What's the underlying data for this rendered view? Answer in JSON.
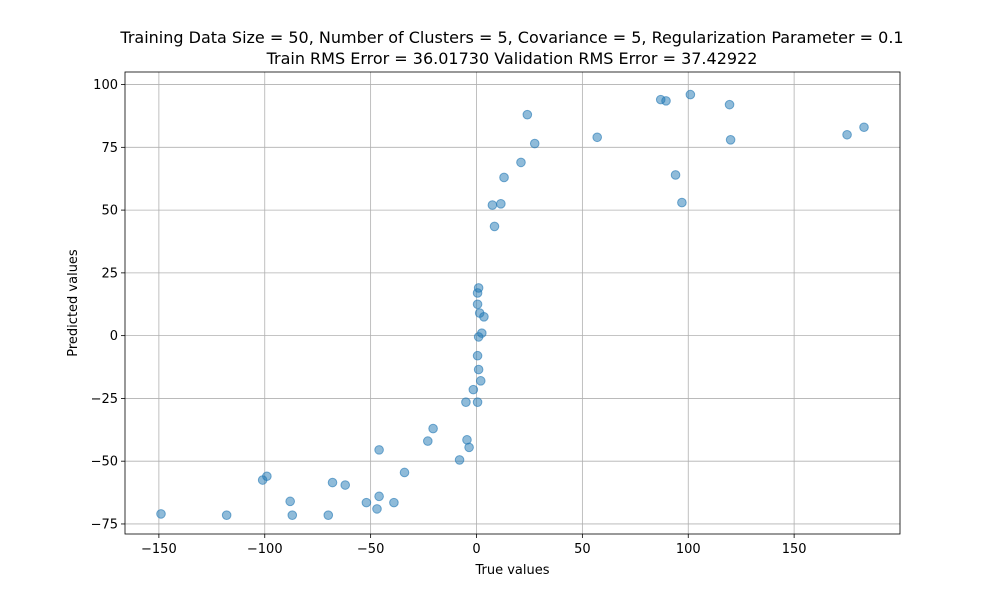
{
  "chart_data": {
    "type": "scatter",
    "title_line1": "Training Data Size = 50, Number of Clusters = 5, Covariance = 5, Regularization Parameter = 0.1",
    "title_line2": "Train RMS Error = 36.01730 Validation RMS Error = 37.42922",
    "xlabel": "True values",
    "ylabel": "Predicted values",
    "xlim": [
      -166,
      200
    ],
    "ylim": [
      -79,
      105
    ],
    "xticks": [
      -150,
      -100,
      -50,
      0,
      50,
      100,
      150
    ],
    "yticks": [
      -75,
      -50,
      -25,
      0,
      25,
      50,
      75,
      100
    ],
    "grid": true,
    "point_color": "#1f77b4",
    "point_alpha": 0.5,
    "points": [
      {
        "x": -149,
        "y": -71
      },
      {
        "x": -118,
        "y": -71.5
      },
      {
        "x": -101,
        "y": -57.5
      },
      {
        "x": -99,
        "y": -56
      },
      {
        "x": -88,
        "y": -66
      },
      {
        "x": -87,
        "y": -71.5
      },
      {
        "x": -70,
        "y": -71.5
      },
      {
        "x": -68,
        "y": -58.5
      },
      {
        "x": -62,
        "y": -59.5
      },
      {
        "x": -52,
        "y": -66.5
      },
      {
        "x": -47,
        "y": -69
      },
      {
        "x": -46,
        "y": -64
      },
      {
        "x": -46,
        "y": -45.5
      },
      {
        "x": -39,
        "y": -66.5
      },
      {
        "x": -34,
        "y": -54.5
      },
      {
        "x": -23,
        "y": -42
      },
      {
        "x": -20.5,
        "y": -37
      },
      {
        "x": -8,
        "y": -49.5
      },
      {
        "x": -5,
        "y": -26.5
      },
      {
        "x": -4.5,
        "y": -41.5
      },
      {
        "x": -3.5,
        "y": -44.5
      },
      {
        "x": -1.5,
        "y": -21.5
      },
      {
        "x": 0.5,
        "y": -26.5
      },
      {
        "x": 0.5,
        "y": -8
      },
      {
        "x": 1,
        "y": -13.5
      },
      {
        "x": 2,
        "y": -18
      },
      {
        "x": 1,
        "y": -0.5
      },
      {
        "x": 2.5,
        "y": 1
      },
      {
        "x": 1.5,
        "y": 9
      },
      {
        "x": 3.5,
        "y": 7.5
      },
      {
        "x": 0.5,
        "y": 12.5
      },
      {
        "x": 0.5,
        "y": 17
      },
      {
        "x": 1,
        "y": 19
      },
      {
        "x": 7.5,
        "y": 52
      },
      {
        "x": 8.5,
        "y": 43.5
      },
      {
        "x": 11.5,
        "y": 52.5
      },
      {
        "x": 13,
        "y": 63
      },
      {
        "x": 21,
        "y": 69
      },
      {
        "x": 24,
        "y": 88
      },
      {
        "x": 27.5,
        "y": 76.5
      },
      {
        "x": 57,
        "y": 79
      },
      {
        "x": 87,
        "y": 94
      },
      {
        "x": 89.5,
        "y": 93.5
      },
      {
        "x": 94,
        "y": 64
      },
      {
        "x": 97,
        "y": 53
      },
      {
        "x": 101,
        "y": 96
      },
      {
        "x": 119.5,
        "y": 92
      },
      {
        "x": 120,
        "y": 78
      },
      {
        "x": 175,
        "y": 80
      },
      {
        "x": 183,
        "y": 83
      }
    ]
  }
}
